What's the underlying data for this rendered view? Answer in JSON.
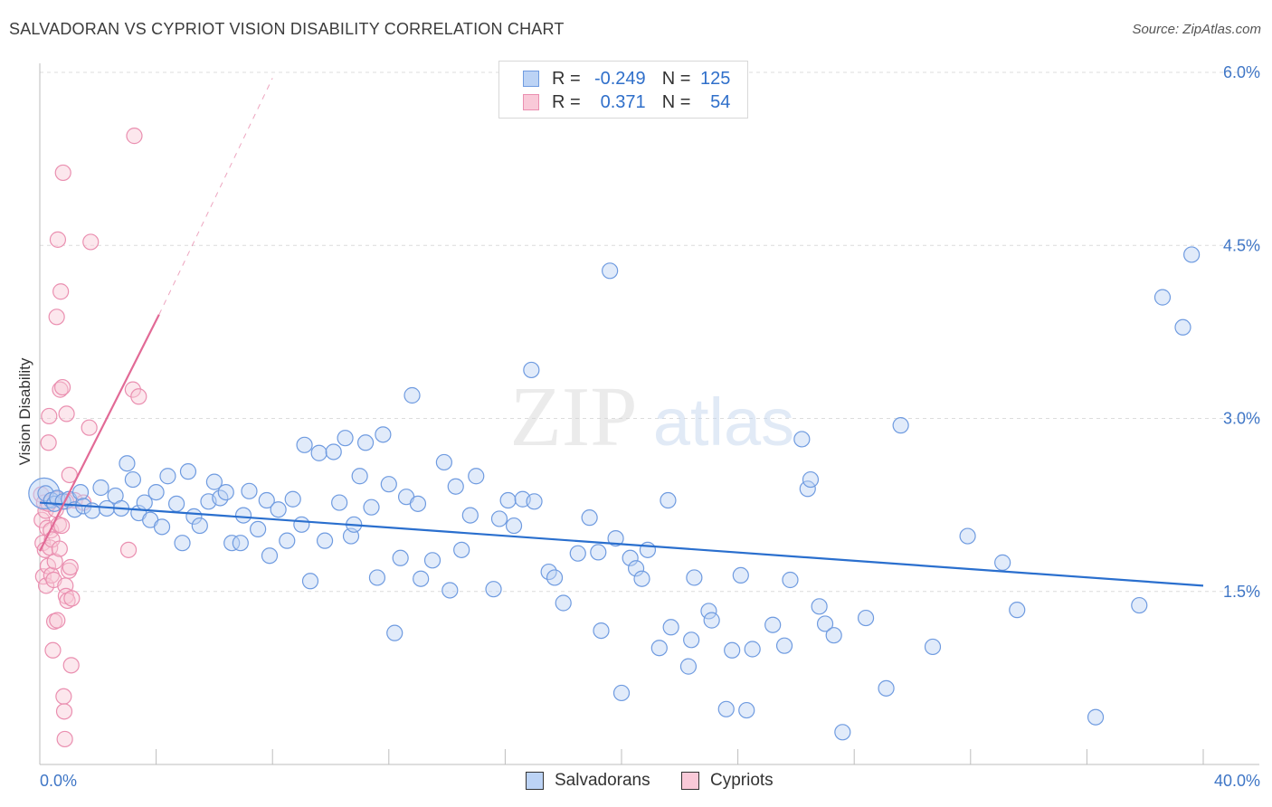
{
  "title": "SALVADORAN VS CYPRIOT VISION DISABILITY CORRELATION CHART",
  "source": "Source: ZipAtlas.com",
  "watermark": {
    "zip": "ZIP",
    "atlas": "atlas"
  },
  "legend": {
    "rows": [
      {
        "r_label": "R =",
        "r_value": "-0.249",
        "n_label": "N =",
        "n_value": "125"
      },
      {
        "r_label": "R =",
        "r_value": "0.371",
        "n_label": "N =",
        "n_value": "54"
      }
    ]
  },
  "bottom_legend": {
    "series1": "Salvadorans",
    "series2": "Cypriots"
  },
  "colors": {
    "salvadoran": "#6f9be0",
    "salvadoran_fill": "#bcd3f5",
    "salvadoran_line": "#2a6fce",
    "cypriot": "#ea8fb0",
    "cypriot_fill": "#f9c9d8",
    "cypriot_line": "#e26a96",
    "tick": "#3f76c6"
  },
  "chart_data": {
    "type": "scatter",
    "title": "SALVADORAN VS CYPRIOT VISION DISABILITY CORRELATION CHART",
    "xlabel": "",
    "ylabel": "Vision Disability",
    "xlim": [
      0,
      40
    ],
    "ylim": [
      0,
      6.2
    ],
    "x_tick_labels": [
      "0.0%",
      "40.0%"
    ],
    "y_ticks": [
      1.5,
      3.0,
      4.5,
      6.0
    ],
    "y_tick_labels": [
      "1.5%",
      "3.0%",
      "4.5%",
      "6.0%"
    ],
    "series": [
      {
        "name": "Salvadorans",
        "r": -0.249,
        "n": 125,
        "trend": {
          "x": [
            0,
            40
          ],
          "y": [
            2.27,
            1.55
          ]
        },
        "points": [
          [
            0.2,
            2.35
          ],
          [
            0.4,
            2.29
          ],
          [
            0.5,
            2.26
          ],
          [
            0.6,
            2.31
          ],
          [
            0.8,
            2.28
          ],
          [
            1.0,
            2.3
          ],
          [
            1.2,
            2.21
          ],
          [
            1.4,
            2.36
          ],
          [
            1.5,
            2.24
          ],
          [
            1.8,
            2.2
          ],
          [
            2.1,
            2.4
          ],
          [
            2.3,
            2.22
          ],
          [
            2.6,
            2.33
          ],
          [
            2.8,
            2.22
          ],
          [
            3.0,
            2.61
          ],
          [
            3.2,
            2.47
          ],
          [
            3.4,
            2.18
          ],
          [
            3.6,
            2.27
          ],
          [
            3.8,
            2.12
          ],
          [
            4.0,
            2.36
          ],
          [
            4.2,
            2.06
          ],
          [
            4.4,
            2.5
          ],
          [
            4.7,
            2.26
          ],
          [
            4.9,
            1.92
          ],
          [
            5.1,
            2.54
          ],
          [
            5.3,
            2.15
          ],
          [
            5.5,
            2.07
          ],
          [
            5.8,
            2.28
          ],
          [
            6.0,
            2.45
          ],
          [
            6.2,
            2.31
          ],
          [
            6.4,
            2.36
          ],
          [
            6.6,
            1.92
          ],
          [
            6.9,
            1.92
          ],
          [
            7.0,
            2.16
          ],
          [
            7.2,
            2.37
          ],
          [
            7.5,
            2.04
          ],
          [
            7.8,
            2.29
          ],
          [
            7.9,
            1.81
          ],
          [
            8.2,
            2.21
          ],
          [
            8.5,
            1.94
          ],
          [
            8.7,
            2.3
          ],
          [
            9.0,
            2.08
          ],
          [
            9.1,
            2.77
          ],
          [
            9.3,
            1.59
          ],
          [
            9.6,
            2.7
          ],
          [
            9.8,
            1.94
          ],
          [
            10.1,
            2.71
          ],
          [
            10.3,
            2.27
          ],
          [
            10.5,
            2.83
          ],
          [
            10.7,
            1.98
          ],
          [
            10.8,
            2.08
          ],
          [
            11.0,
            2.5
          ],
          [
            11.2,
            2.79
          ],
          [
            11.4,
            2.23
          ],
          [
            11.6,
            1.62
          ],
          [
            11.8,
            2.86
          ],
          [
            12.0,
            2.43
          ],
          [
            12.2,
            1.14
          ],
          [
            12.4,
            1.79
          ],
          [
            12.6,
            2.32
          ],
          [
            12.8,
            3.2
          ],
          [
            13.0,
            2.26
          ],
          [
            13.1,
            1.61
          ],
          [
            13.5,
            1.77
          ],
          [
            13.9,
            2.62
          ],
          [
            14.1,
            1.51
          ],
          [
            14.3,
            2.41
          ],
          [
            14.5,
            1.86
          ],
          [
            14.8,
            2.16
          ],
          [
            15.0,
            2.5
          ],
          [
            15.6,
            1.52
          ],
          [
            15.8,
            2.13
          ],
          [
            16.1,
            2.29
          ],
          [
            16.3,
            2.07
          ],
          [
            16.6,
            2.3
          ],
          [
            16.9,
            3.42
          ],
          [
            17.0,
            2.28
          ],
          [
            17.5,
            1.67
          ],
          [
            17.7,
            1.62
          ],
          [
            18.0,
            1.4
          ],
          [
            18.5,
            1.83
          ],
          [
            18.9,
            2.14
          ],
          [
            19.2,
            1.84
          ],
          [
            19.3,
            1.16
          ],
          [
            19.6,
            4.28
          ],
          [
            19.8,
            1.96
          ],
          [
            20.0,
            0.62
          ],
          [
            20.3,
            1.79
          ],
          [
            20.5,
            1.7
          ],
          [
            20.7,
            1.61
          ],
          [
            20.9,
            1.86
          ],
          [
            21.3,
            1.01
          ],
          [
            21.6,
            2.29
          ],
          [
            21.7,
            1.19
          ],
          [
            22.3,
            0.85
          ],
          [
            22.4,
            1.08
          ],
          [
            22.5,
            1.62
          ],
          [
            23.0,
            1.33
          ],
          [
            23.1,
            1.25
          ],
          [
            23.6,
            0.48
          ],
          [
            23.8,
            0.99
          ],
          [
            24.1,
            1.64
          ],
          [
            24.3,
            0.47
          ],
          [
            24.5,
            1.0
          ],
          [
            25.2,
            1.21
          ],
          [
            25.6,
            1.03
          ],
          [
            25.8,
            1.6
          ],
          [
            26.2,
            2.82
          ],
          [
            26.4,
            2.39
          ],
          [
            26.5,
            2.47
          ],
          [
            26.8,
            1.37
          ],
          [
            27.0,
            1.22
          ],
          [
            27.3,
            1.12
          ],
          [
            27.6,
            0.28
          ],
          [
            28.4,
            1.27
          ],
          [
            29.1,
            0.66
          ],
          [
            29.6,
            2.94
          ],
          [
            30.7,
            1.02
          ],
          [
            31.9,
            1.98
          ],
          [
            33.1,
            1.75
          ],
          [
            33.6,
            1.34
          ],
          [
            36.3,
            0.41
          ],
          [
            37.8,
            1.38
          ],
          [
            38.6,
            4.05
          ],
          [
            39.3,
            3.79
          ],
          [
            39.6,
            4.42
          ]
        ]
      },
      {
        "name": "Cypriots",
        "r": 0.371,
        "n": 54,
        "trend": {
          "x": [
            0,
            4.1
          ],
          "y": [
            1.85,
            3.9
          ]
        },
        "trend_extension": {
          "x": [
            4.1,
            8.0
          ],
          "y": [
            3.9,
            5.95
          ]
        },
        "points": [
          [
            0.05,
            2.34
          ],
          [
            0.07,
            2.12
          ],
          [
            0.1,
            1.92
          ],
          [
            0.12,
            1.63
          ],
          [
            0.15,
            2.27
          ],
          [
            0.18,
            1.86
          ],
          [
            0.2,
            2.2
          ],
          [
            0.22,
            1.55
          ],
          [
            0.25,
            2.05
          ],
          [
            0.28,
            1.72
          ],
          [
            0.3,
            2.79
          ],
          [
            0.32,
            3.02
          ],
          [
            0.35,
            1.88
          ],
          [
            0.38,
            2.03
          ],
          [
            0.4,
            1.64
          ],
          [
            0.42,
            1.95
          ],
          [
            0.45,
            0.99
          ],
          [
            0.48,
            1.6
          ],
          [
            0.5,
            1.24
          ],
          [
            0.52,
            1.76
          ],
          [
            0.55,
            2.21
          ],
          [
            0.58,
            3.88
          ],
          [
            0.6,
            1.25
          ],
          [
            0.62,
            4.55
          ],
          [
            0.65,
            2.08
          ],
          [
            0.68,
            1.87
          ],
          [
            0.7,
            3.25
          ],
          [
            0.72,
            4.1
          ],
          [
            0.75,
            2.07
          ],
          [
            0.78,
            3.27
          ],
          [
            0.8,
            5.13
          ],
          [
            0.82,
            0.59
          ],
          [
            0.84,
            0.46
          ],
          [
            0.86,
            0.22
          ],
          [
            0.88,
            1.55
          ],
          [
            0.9,
            1.46
          ],
          [
            0.92,
            3.04
          ],
          [
            0.95,
            1.42
          ],
          [
            1.0,
            1.68
          ],
          [
            1.02,
            2.51
          ],
          [
            1.05,
            1.71
          ],
          [
            1.08,
            0.86
          ],
          [
            1.1,
            1.44
          ],
          [
            1.2,
            2.29
          ],
          [
            1.5,
            2.27
          ],
          [
            1.7,
            2.92
          ],
          [
            1.75,
            4.53
          ],
          [
            3.05,
            1.86
          ],
          [
            3.2,
            3.25
          ],
          [
            3.25,
            5.45
          ],
          [
            3.4,
            3.19
          ],
          [
            0.3,
            2.26
          ],
          [
            0.6,
            2.3
          ],
          [
            0.9,
            2.28
          ]
        ]
      }
    ]
  }
}
